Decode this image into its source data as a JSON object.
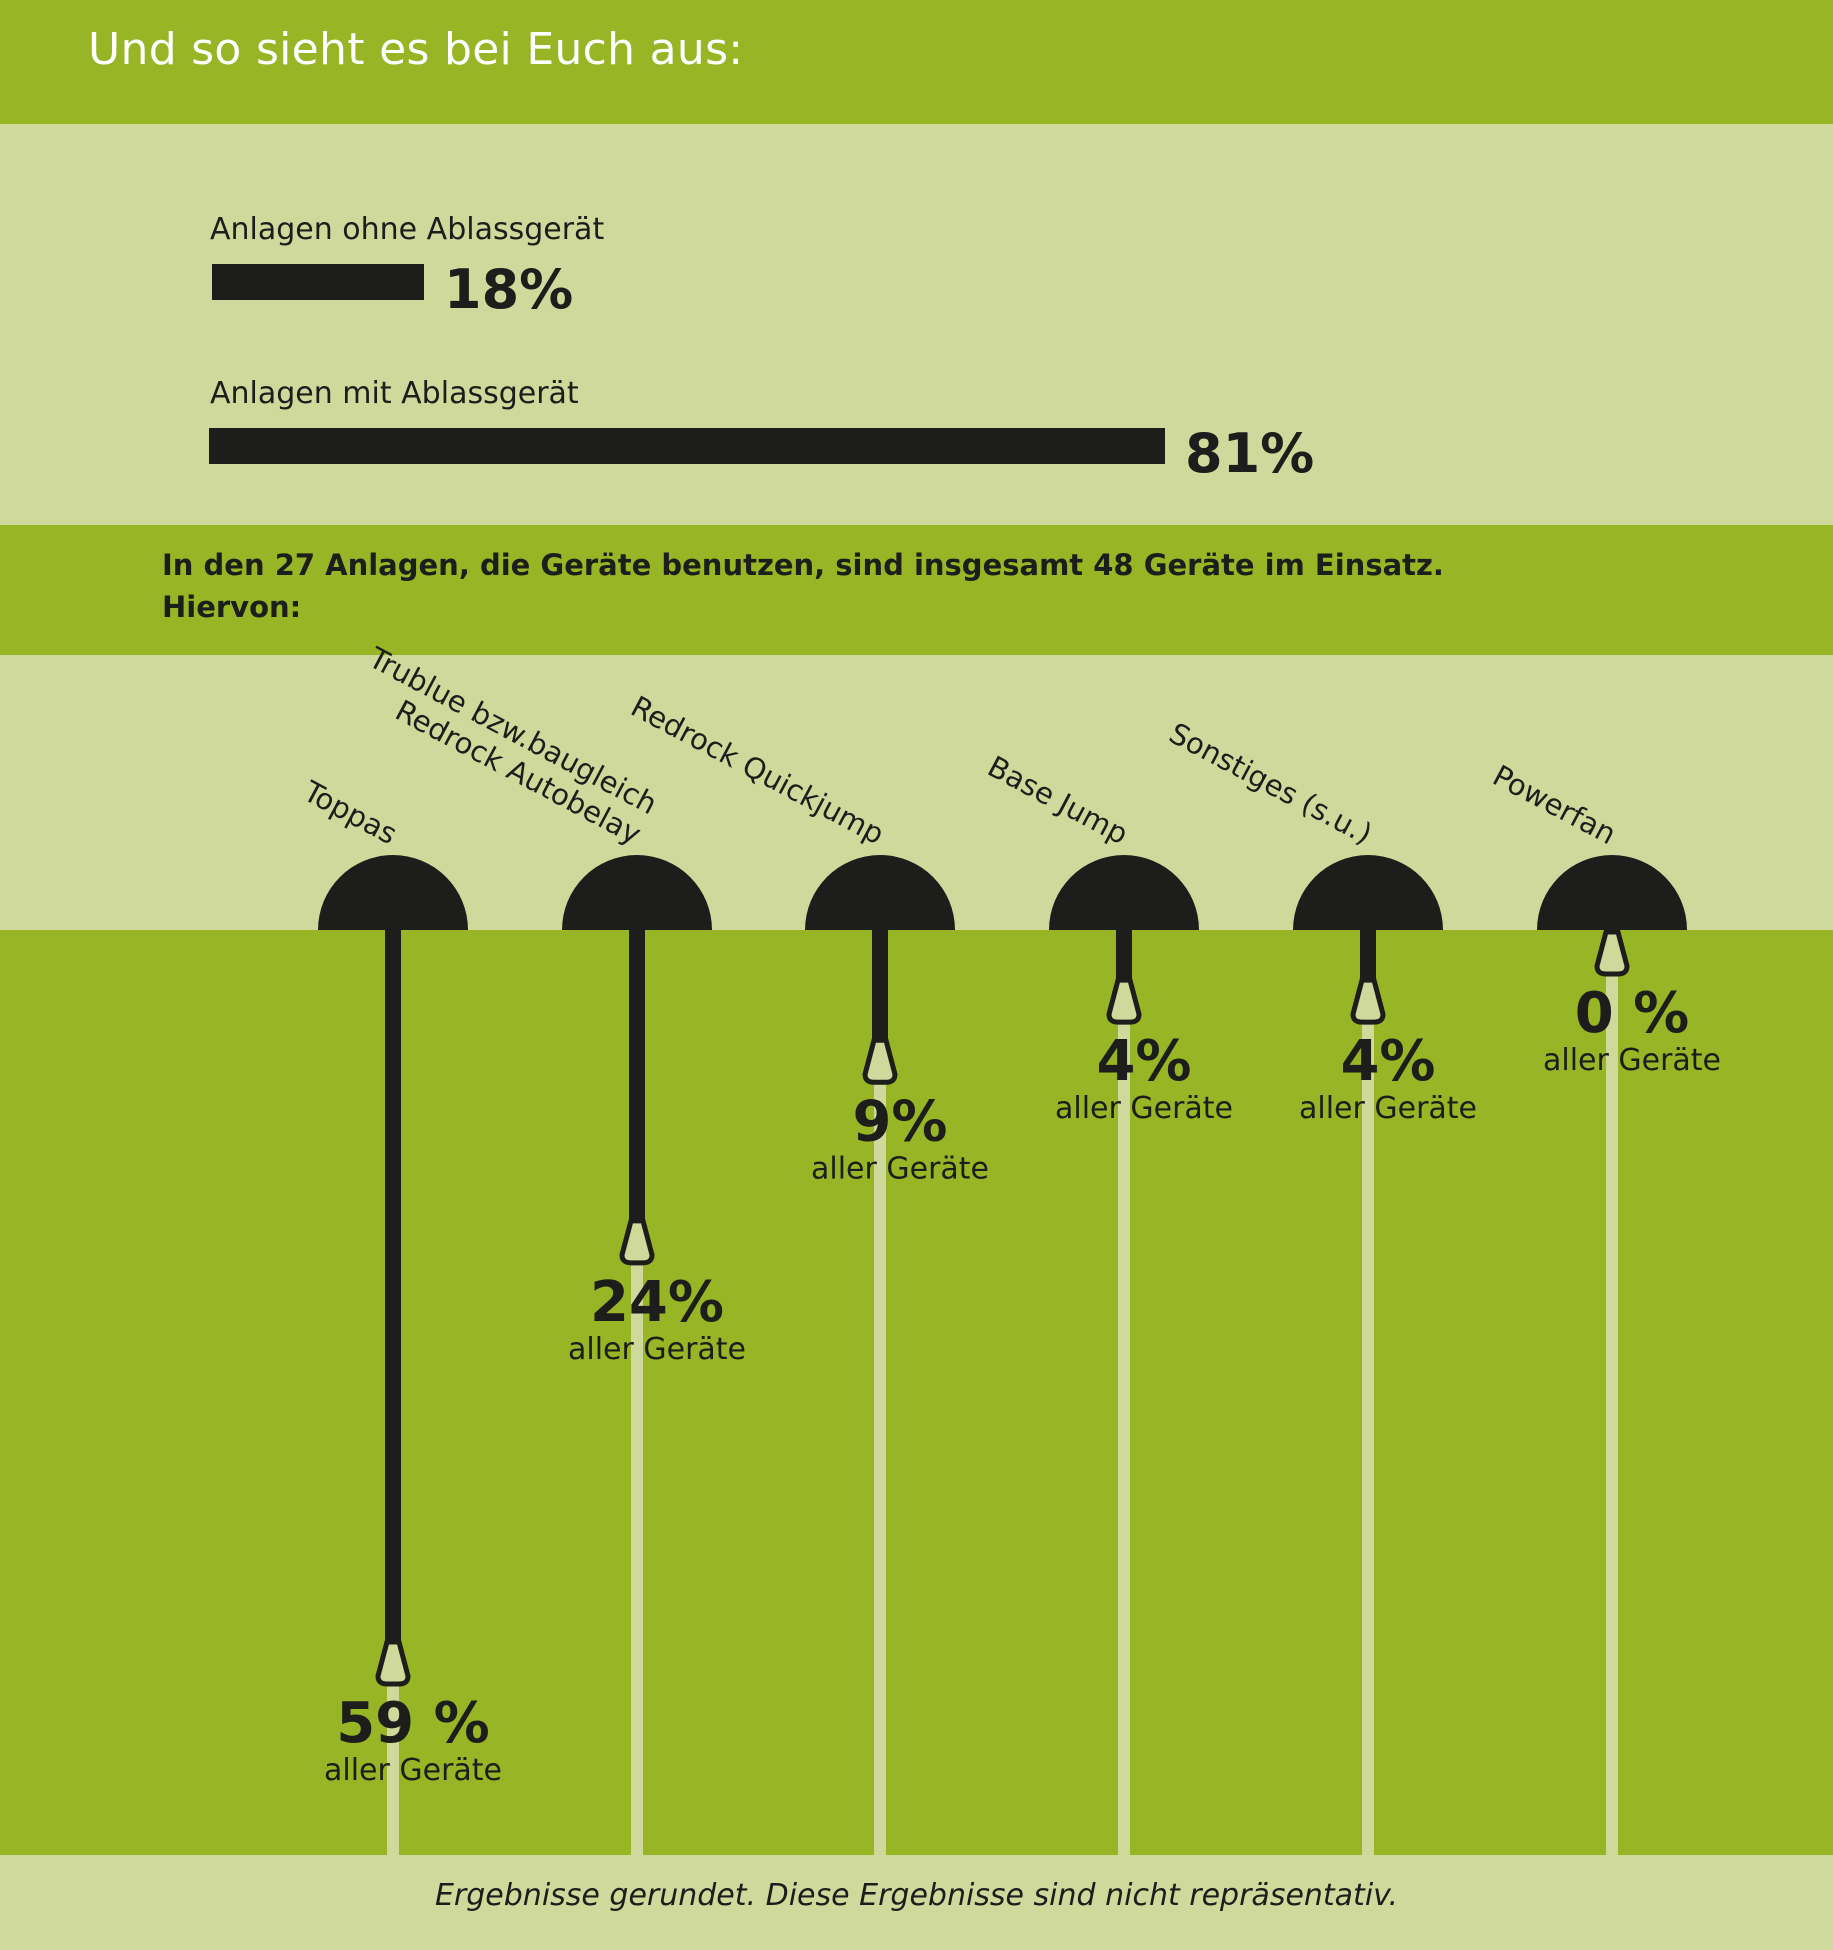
{
  "header": {
    "title": "Und so sieht es bei Euch aus:"
  },
  "chart_data": [
    {
      "type": "bar",
      "orientation": "horizontal",
      "categories": [
        "Anlagen ohne Ablassgerät",
        "Anlagen mit Ablassgerät"
      ],
      "values": [
        18,
        81
      ],
      "value_labels": [
        "18%",
        "81%"
      ],
      "unit": "%",
      "xlim": [
        0,
        100
      ]
    },
    {
      "type": "bar",
      "orientation": "vertical-down",
      "categories": [
        [
          "Toppas"
        ],
        [
          "Trublue bzw.baugleich",
          "Redrock Autobelay"
        ],
        [
          "Redrock Quickjump"
        ],
        [
          "Base Jump"
        ],
        [
          "Sonstiges (s.u.)"
        ],
        [
          "Powerfan"
        ]
      ],
      "values": [
        59,
        24,
        9,
        4,
        4,
        0
      ],
      "value_labels": [
        "59 %",
        "24%",
        "9%",
        "4%",
        "4%",
        "0 %"
      ],
      "value_sublabel": "aller Geräte",
      "unit": "%",
      "ylim": [
        0,
        59
      ]
    }
  ],
  "info": {
    "line1": "In den 27 Anlagen, die Geräte benutzen, sind insgesamt 48 Geräte im Einsatz.",
    "line2": "Hiervon:"
  },
  "footer": {
    "note": "Ergebnisse gerundet. Diese Ergebnisse sind nicht repräsentativ."
  },
  "colors": {
    "dark": "#1d1d1b",
    "green": "#97b525",
    "light": "#cfd99b",
    "white": "#ffffff"
  }
}
